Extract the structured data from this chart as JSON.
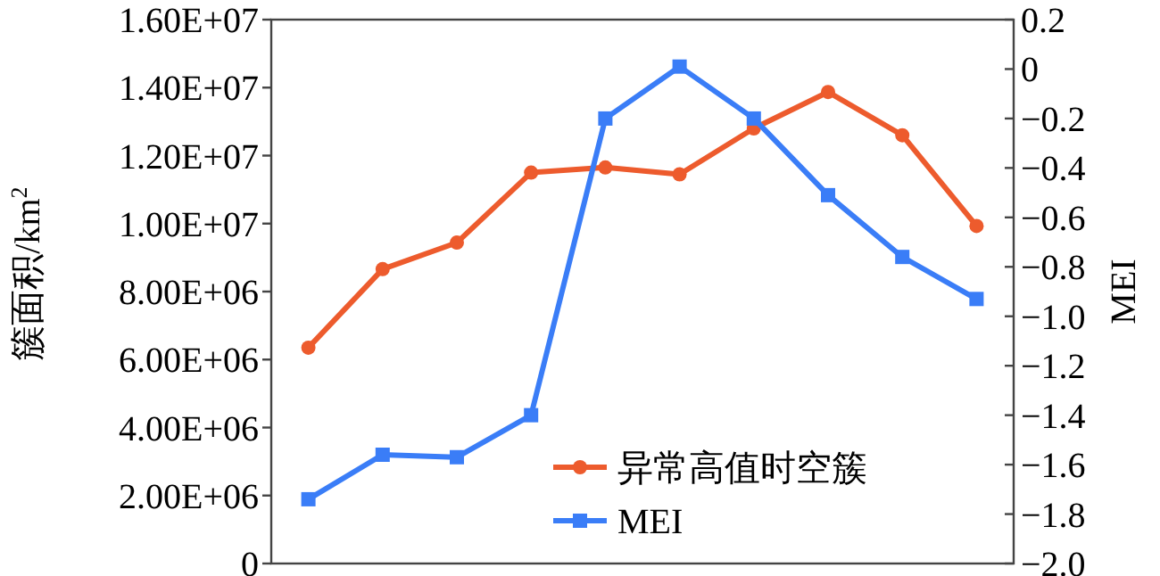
{
  "chart_data": {
    "type": "line",
    "ylabel": "簇面积/km$^{2}$",
    "y2label": "MEI",
    "categories": [
      null,
      null,
      null,
      null,
      null,
      null,
      null,
      null,
      null,
      null
    ],
    "series": [
      {
        "name": "异常高值时空簇",
        "color": "#ed5b2d",
        "marker": "circle",
        "values": [
          6350000,
          8660000,
          9440000,
          11500000,
          11650000,
          11450000,
          12800000,
          13870000,
          12600000,
          9930000
        ]
      },
      {
        "name": "MEI",
        "color": "#3a7df7",
        "marker": "square",
        "axis": "y2",
        "values": [
          -1.74,
          -1.56,
          -1.57,
          -1.4,
          -0.2,
          0.01,
          -0.2,
          -0.51,
          -0.76,
          -0.93
        ]
      }
    ],
    "ylim": [
      0,
      16000000
    ],
    "yticks": [
      0,
      {
        "value": 2000000,
        "label": "2.00E+06"
      },
      {
        "value": 4000000,
        "label": "4.00E+06"
      },
      {
        "value": 6000000,
        "label": "6.00E+06"
      },
      {
        "value": 8000000,
        "label": "8.00E+06"
      },
      {
        "value": 10000000,
        "label": "1.00E+07"
      },
      {
        "value": 12000000,
        "label": "1.20E+07"
      },
      {
        "value": 14000000,
        "label": "1.40E+07"
      },
      {
        "value": 16000000,
        "label": "1.60E+07"
      }
    ],
    "y2lim": [
      -2.0,
      0.2
    ],
    "y2ticks": [
      0.2,
      0,
      {
        "value": -0.2,
        "label": "−0.2"
      },
      {
        "value": -0.4,
        "label": "−0.4"
      },
      {
        "value": -0.6,
        "label": "−0.6"
      },
      {
        "value": -0.8,
        "label": "−0.8"
      },
      {
        "value": -1.0,
        "label": "−1.0"
      },
      {
        "value": -1.2,
        "label": "−1.2"
      },
      {
        "value": -1.4,
        "label": "−1.4"
      },
      {
        "value": -1.6,
        "label": "−1.6"
      },
      {
        "value": -1.8,
        "label": "−1.8"
      },
      {
        "value": -2.0,
        "label": "−2.0"
      }
    ],
    "grid": false,
    "legend": "bottom right",
    "line_style": "solid"
  }
}
